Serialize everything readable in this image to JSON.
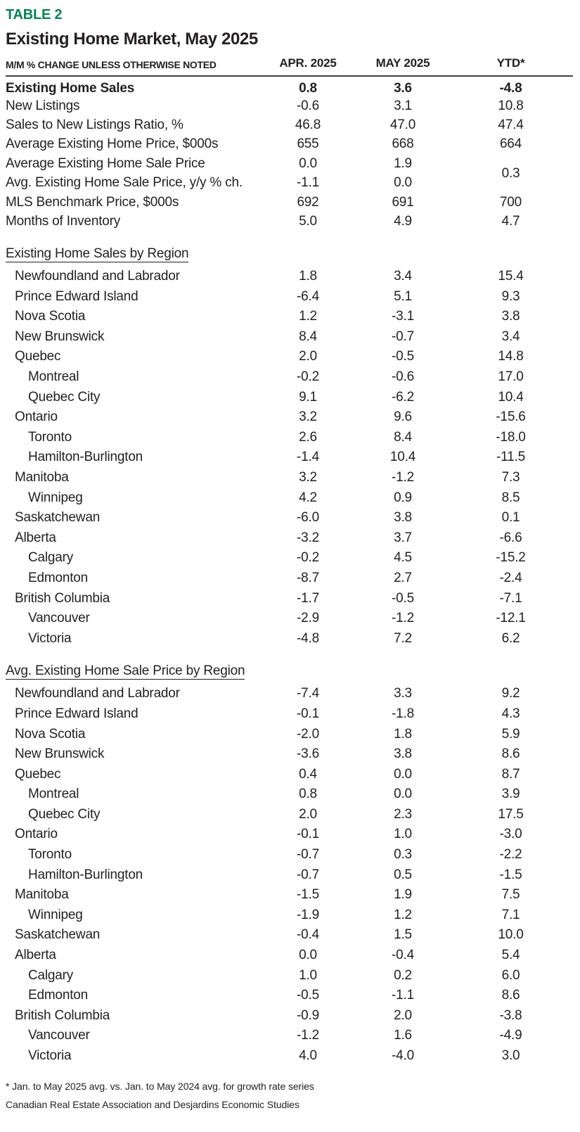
{
  "table_label": "TABLE 2",
  "title": "Existing Home Market, May 2025",
  "columns": {
    "note": "M/M % CHANGE UNLESS OTHERWISE NOTED",
    "apr": "APR. 2025",
    "may": "MAY 2025",
    "ytd": "YTD*"
  },
  "colors": {
    "accent_green": "#00874E",
    "text": "#231F20",
    "rule": "#414042"
  },
  "sections": [
    {
      "header": null,
      "rows": [
        {
          "label": "Existing Home Sales",
          "indent": 0,
          "bold": true,
          "apr": "0.8",
          "may": "3.6",
          "ytd": "-4.8"
        },
        {
          "label": "New Listings",
          "indent": 0,
          "apr": "-0.6",
          "may": "3.1",
          "ytd": "10.8"
        },
        {
          "label": "Sales to New Listings Ratio, %",
          "indent": 0,
          "apr": "46.8",
          "may": "47.0",
          "ytd": "47.4"
        },
        {
          "label": "Average Existing Home Price, $000s",
          "indent": 0,
          "apr": "655",
          "may": "668",
          "ytd": "664"
        },
        {
          "label": "Average Existing Home Sale Price",
          "indent": 0,
          "apr": "0.0",
          "may": "1.9",
          "ytd": "0.3",
          "ytd_rowspan": 2
        },
        {
          "label": "Avg. Existing Home Sale Price, y/y % ch.",
          "indent": 0,
          "apr": "-1.1",
          "may": "0.0",
          "ytd": null
        },
        {
          "label": "MLS Benchmark Price, $000s",
          "indent": 0,
          "apr": "692",
          "may": "691",
          "ytd": "700"
        },
        {
          "label": "Months of Inventory",
          "indent": 0,
          "apr": "5.0",
          "may": "4.9",
          "ytd": "4.7"
        }
      ]
    },
    {
      "header": "Existing Home Sales by Region",
      "rows": [
        {
          "label": "Newfoundland and Labrador",
          "indent": 1,
          "apr": "1.8",
          "may": "3.4",
          "ytd": "15.4"
        },
        {
          "label": "Prince Edward Island",
          "indent": 1,
          "apr": "-6.4",
          "may": "5.1",
          "ytd": "9.3"
        },
        {
          "label": "Nova Scotia",
          "indent": 1,
          "apr": "1.2",
          "may": "-3.1",
          "ytd": "3.8"
        },
        {
          "label": "New Brunswick",
          "indent": 1,
          "apr": "8.4",
          "may": "-0.7",
          "ytd": "3.4"
        },
        {
          "label": "Quebec",
          "indent": 1,
          "apr": "2.0",
          "may": "-0.5",
          "ytd": "14.8"
        },
        {
          "label": "Montreal",
          "indent": 2,
          "apr": "-0.2",
          "may": "-0.6",
          "ytd": "17.0"
        },
        {
          "label": "Quebec City",
          "indent": 2,
          "apr": "9.1",
          "may": "-6.2",
          "ytd": "10.4"
        },
        {
          "label": "Ontario",
          "indent": 1,
          "apr": "3.2",
          "may": "9.6",
          "ytd": "-15.6"
        },
        {
          "label": "Toronto",
          "indent": 2,
          "apr": "2.6",
          "may": "8.4",
          "ytd": "-18.0"
        },
        {
          "label": "Hamilton-Burlington",
          "indent": 2,
          "apr": "-1.4",
          "may": "10.4",
          "ytd": "-11.5"
        },
        {
          "label": "Manitoba",
          "indent": 1,
          "apr": "3.2",
          "may": "-1.2",
          "ytd": "7.3"
        },
        {
          "label": "Winnipeg",
          "indent": 2,
          "apr": "4.2",
          "may": "0.9",
          "ytd": "8.5"
        },
        {
          "label": "Saskatchewan",
          "indent": 1,
          "apr": "-6.0",
          "may": "3.8",
          "ytd": "0.1"
        },
        {
          "label": "Alberta",
          "indent": 1,
          "apr": "-3.2",
          "may": "3.7",
          "ytd": "-6.6"
        },
        {
          "label": "Calgary",
          "indent": 2,
          "apr": "-0.2",
          "may": "4.5",
          "ytd": "-15.2"
        },
        {
          "label": "Edmonton",
          "indent": 2,
          "apr": "-8.7",
          "may": "2.7",
          "ytd": "-2.4"
        },
        {
          "label": "British Columbia",
          "indent": 1,
          "apr": "-1.7",
          "may": "-0.5",
          "ytd": "-7.1"
        },
        {
          "label": "Vancouver",
          "indent": 2,
          "apr": "-2.9",
          "may": "-1.2",
          "ytd": "-12.1"
        },
        {
          "label": "Victoria",
          "indent": 2,
          "apr": "-4.8",
          "may": "7.2",
          "ytd": "6.2"
        }
      ]
    },
    {
      "header": "Avg. Existing Home Sale Price by Region",
      "rows": [
        {
          "label": "Newfoundland and Labrador",
          "indent": 1,
          "apr": "-7.4",
          "may": "3.3",
          "ytd": "9.2"
        },
        {
          "label": "Prince Edward Island",
          "indent": 1,
          "apr": "-0.1",
          "may": "-1.8",
          "ytd": "4.3"
        },
        {
          "label": "Nova Scotia",
          "indent": 1,
          "apr": "-2.0",
          "may": "1.8",
          "ytd": "5.9"
        },
        {
          "label": "New Brunswick",
          "indent": 1,
          "apr": "-3.6",
          "may": "3.8",
          "ytd": "8.6"
        },
        {
          "label": "Quebec",
          "indent": 1,
          "apr": "0.4",
          "may": "0.0",
          "ytd": "8.7"
        },
        {
          "label": "Montreal",
          "indent": 2,
          "apr": "0.8",
          "may": "0.0",
          "ytd": "3.9"
        },
        {
          "label": "Quebec City",
          "indent": 2,
          "apr": "2.0",
          "may": "2.3",
          "ytd": "17.5"
        },
        {
          "label": "Ontario",
          "indent": 1,
          "apr": "-0.1",
          "may": "1.0",
          "ytd": "-3.0"
        },
        {
          "label": "Toronto",
          "indent": 2,
          "apr": "-0.7",
          "may": "0.3",
          "ytd": "-2.2"
        },
        {
          "label": "Hamilton-Burlington",
          "indent": 2,
          "apr": "-0.7",
          "may": "0.5",
          "ytd": "-1.5"
        },
        {
          "label": "Manitoba",
          "indent": 1,
          "apr": "-1.5",
          "may": "1.9",
          "ytd": "7.5"
        },
        {
          "label": "Winnipeg",
          "indent": 2,
          "apr": "-1.9",
          "may": "1.2",
          "ytd": "7.1"
        },
        {
          "label": "Saskatchewan",
          "indent": 1,
          "apr": "-0.4",
          "may": "1.5",
          "ytd": "10.0"
        },
        {
          "label": "Alberta",
          "indent": 1,
          "apr": "0.0",
          "may": "-0.4",
          "ytd": "5.4"
        },
        {
          "label": "Calgary",
          "indent": 2,
          "apr": "1.0",
          "may": "0.2",
          "ytd": "6.0"
        },
        {
          "label": "Edmonton",
          "indent": 2,
          "apr": "-0.5",
          "may": "-1.1",
          "ytd": "8.6"
        },
        {
          "label": "British Columbia",
          "indent": 1,
          "apr": "-0.9",
          "may": "2.0",
          "ytd": "-3.8"
        },
        {
          "label": "Vancouver",
          "indent": 2,
          "apr": "-1.2",
          "may": "1.6",
          "ytd": "-4.9"
        },
        {
          "label": "Victoria",
          "indent": 2,
          "apr": "4.0",
          "may": "-4.0",
          "ytd": "3.0"
        }
      ]
    }
  ],
  "footnotes": {
    "asterisk": "* Jan. to May 2025 avg. vs. Jan. to May 2024 avg. for growth rate series",
    "source": "Canadian Real Estate Association and Desjardins Economic Studies"
  }
}
